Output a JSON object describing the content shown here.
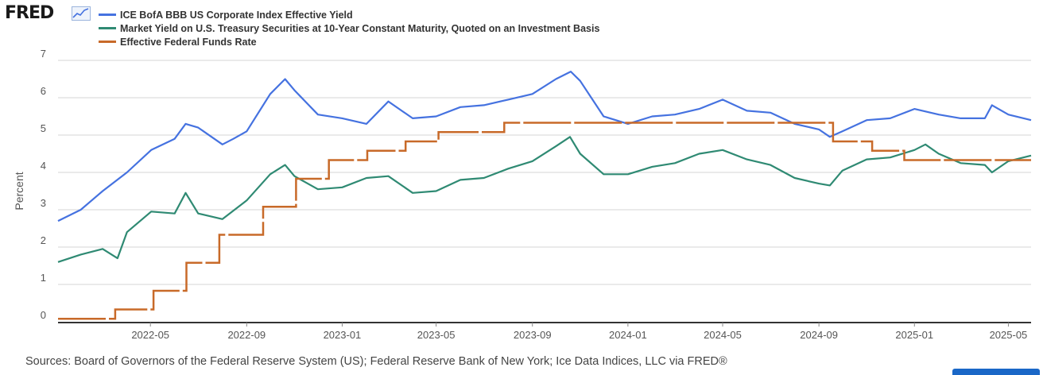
{
  "brand": {
    "logo_text": "FRED",
    "logo_icon": "sparkline-chart-icon"
  },
  "sources_text": "Sources: Board of Governors of the Federal Reserve System (US); Federal Reserve Bank of New York; Ice Data Indices, LLC via FRED®",
  "chart_data": {
    "type": "line",
    "title": "",
    "xlabel": "",
    "ylabel": "Percent",
    "ylim": [
      0,
      7
    ],
    "yticks": [
      0,
      1,
      2,
      3,
      4,
      5,
      6,
      7
    ],
    "xlim": [
      "2022-01-03",
      "2025-05-30"
    ],
    "xtick_labels": [
      "2022-05",
      "2022-09",
      "2023-01",
      "2023-05",
      "2023-09",
      "2024-01",
      "2024-05",
      "2024-09",
      "2025-01",
      "2025-05"
    ],
    "grid": "horizontal",
    "legend_position": "top-left",
    "series": [
      {
        "name": "ICE BofA BBB US Corporate Index Effective Yield",
        "color": "#4572e0",
        "style": "line",
        "x": [
          "2022-01-03",
          "2022-02-01",
          "2022-03-01",
          "2022-04-01",
          "2022-05-02",
          "2022-06-01",
          "2022-06-15",
          "2022-07-01",
          "2022-08-01",
          "2022-08-15",
          "2022-09-01",
          "2022-10-01",
          "2022-10-20",
          "2022-11-01",
          "2022-12-01",
          "2023-01-01",
          "2023-02-01",
          "2023-03-01",
          "2023-04-01",
          "2023-05-01",
          "2023-06-01",
          "2023-07-01",
          "2023-08-01",
          "2023-09-01",
          "2023-10-01",
          "2023-10-20",
          "2023-11-01",
          "2023-12-01",
          "2024-01-01",
          "2024-02-01",
          "2024-03-01",
          "2024-04-01",
          "2024-05-01",
          "2024-06-01",
          "2024-07-01",
          "2024-08-01",
          "2024-09-01",
          "2024-09-15",
          "2024-10-01",
          "2024-11-01",
          "2024-12-01",
          "2025-01-01",
          "2025-02-01",
          "2025-03-01",
          "2025-04-01",
          "2025-04-10",
          "2025-05-01",
          "2025-05-30"
        ],
        "y": [
          2.7,
          3.0,
          3.5,
          4.0,
          4.6,
          4.9,
          5.3,
          5.2,
          4.75,
          4.9,
          5.1,
          6.1,
          6.5,
          6.2,
          5.55,
          5.45,
          5.3,
          5.9,
          5.45,
          5.5,
          5.75,
          5.8,
          5.95,
          6.1,
          6.5,
          6.7,
          6.45,
          5.5,
          5.3,
          5.5,
          5.55,
          5.7,
          5.95,
          5.65,
          5.6,
          5.3,
          5.15,
          4.95,
          5.1,
          5.4,
          5.45,
          5.7,
          5.55,
          5.45,
          5.45,
          5.8,
          5.55,
          5.4
        ]
      },
      {
        "name": "Market Yield on U.S. Treasury Securities at 10-Year Constant Maturity, Quoted on an Investment Basis",
        "color": "#2f8a73",
        "style": "line",
        "x": [
          "2022-01-03",
          "2022-02-01",
          "2022-03-01",
          "2022-03-20",
          "2022-04-01",
          "2022-05-02",
          "2022-06-01",
          "2022-06-15",
          "2022-07-01",
          "2022-08-01",
          "2022-09-01",
          "2022-10-01",
          "2022-10-20",
          "2022-11-01",
          "2022-12-01",
          "2023-01-01",
          "2023-02-01",
          "2023-03-01",
          "2023-04-01",
          "2023-05-01",
          "2023-06-01",
          "2023-07-01",
          "2023-08-01",
          "2023-09-01",
          "2023-10-01",
          "2023-10-19",
          "2023-11-01",
          "2023-12-01",
          "2024-01-01",
          "2024-02-01",
          "2024-03-01",
          "2024-04-01",
          "2024-05-01",
          "2024-06-01",
          "2024-07-01",
          "2024-08-01",
          "2024-09-01",
          "2024-09-15",
          "2024-10-01",
          "2024-11-01",
          "2024-12-01",
          "2025-01-01",
          "2025-01-15",
          "2025-02-01",
          "2025-03-01",
          "2025-04-01",
          "2025-04-10",
          "2025-05-01",
          "2025-05-30"
        ],
        "y": [
          1.6,
          1.8,
          1.95,
          1.7,
          2.4,
          2.95,
          2.9,
          3.45,
          2.9,
          2.75,
          3.25,
          3.95,
          4.2,
          3.9,
          3.55,
          3.6,
          3.85,
          3.9,
          3.45,
          3.5,
          3.8,
          3.85,
          4.1,
          4.3,
          4.7,
          4.95,
          4.5,
          3.95,
          3.95,
          4.15,
          4.25,
          4.5,
          4.6,
          4.35,
          4.2,
          3.85,
          3.7,
          3.65,
          4.05,
          4.35,
          4.4,
          4.6,
          4.75,
          4.5,
          4.25,
          4.2,
          4.0,
          4.3,
          4.45
        ]
      },
      {
        "name": "Effective Federal Funds Rate",
        "color": "#c86a29",
        "style": "step",
        "x": [
          "2022-01-03",
          "2022-03-17",
          "2022-05-05",
          "2022-06-16",
          "2022-07-28",
          "2022-09-22",
          "2022-11-03",
          "2022-12-15",
          "2023-02-02",
          "2023-03-23",
          "2023-05-04",
          "2023-07-27",
          "2024-09-19",
          "2024-11-08",
          "2024-12-19",
          "2025-05-30"
        ],
        "y": [
          0.08,
          0.33,
          0.83,
          1.58,
          2.33,
          3.08,
          3.83,
          4.33,
          4.58,
          4.83,
          5.08,
          5.33,
          4.83,
          4.58,
          4.33,
          4.33
        ]
      }
    ]
  }
}
